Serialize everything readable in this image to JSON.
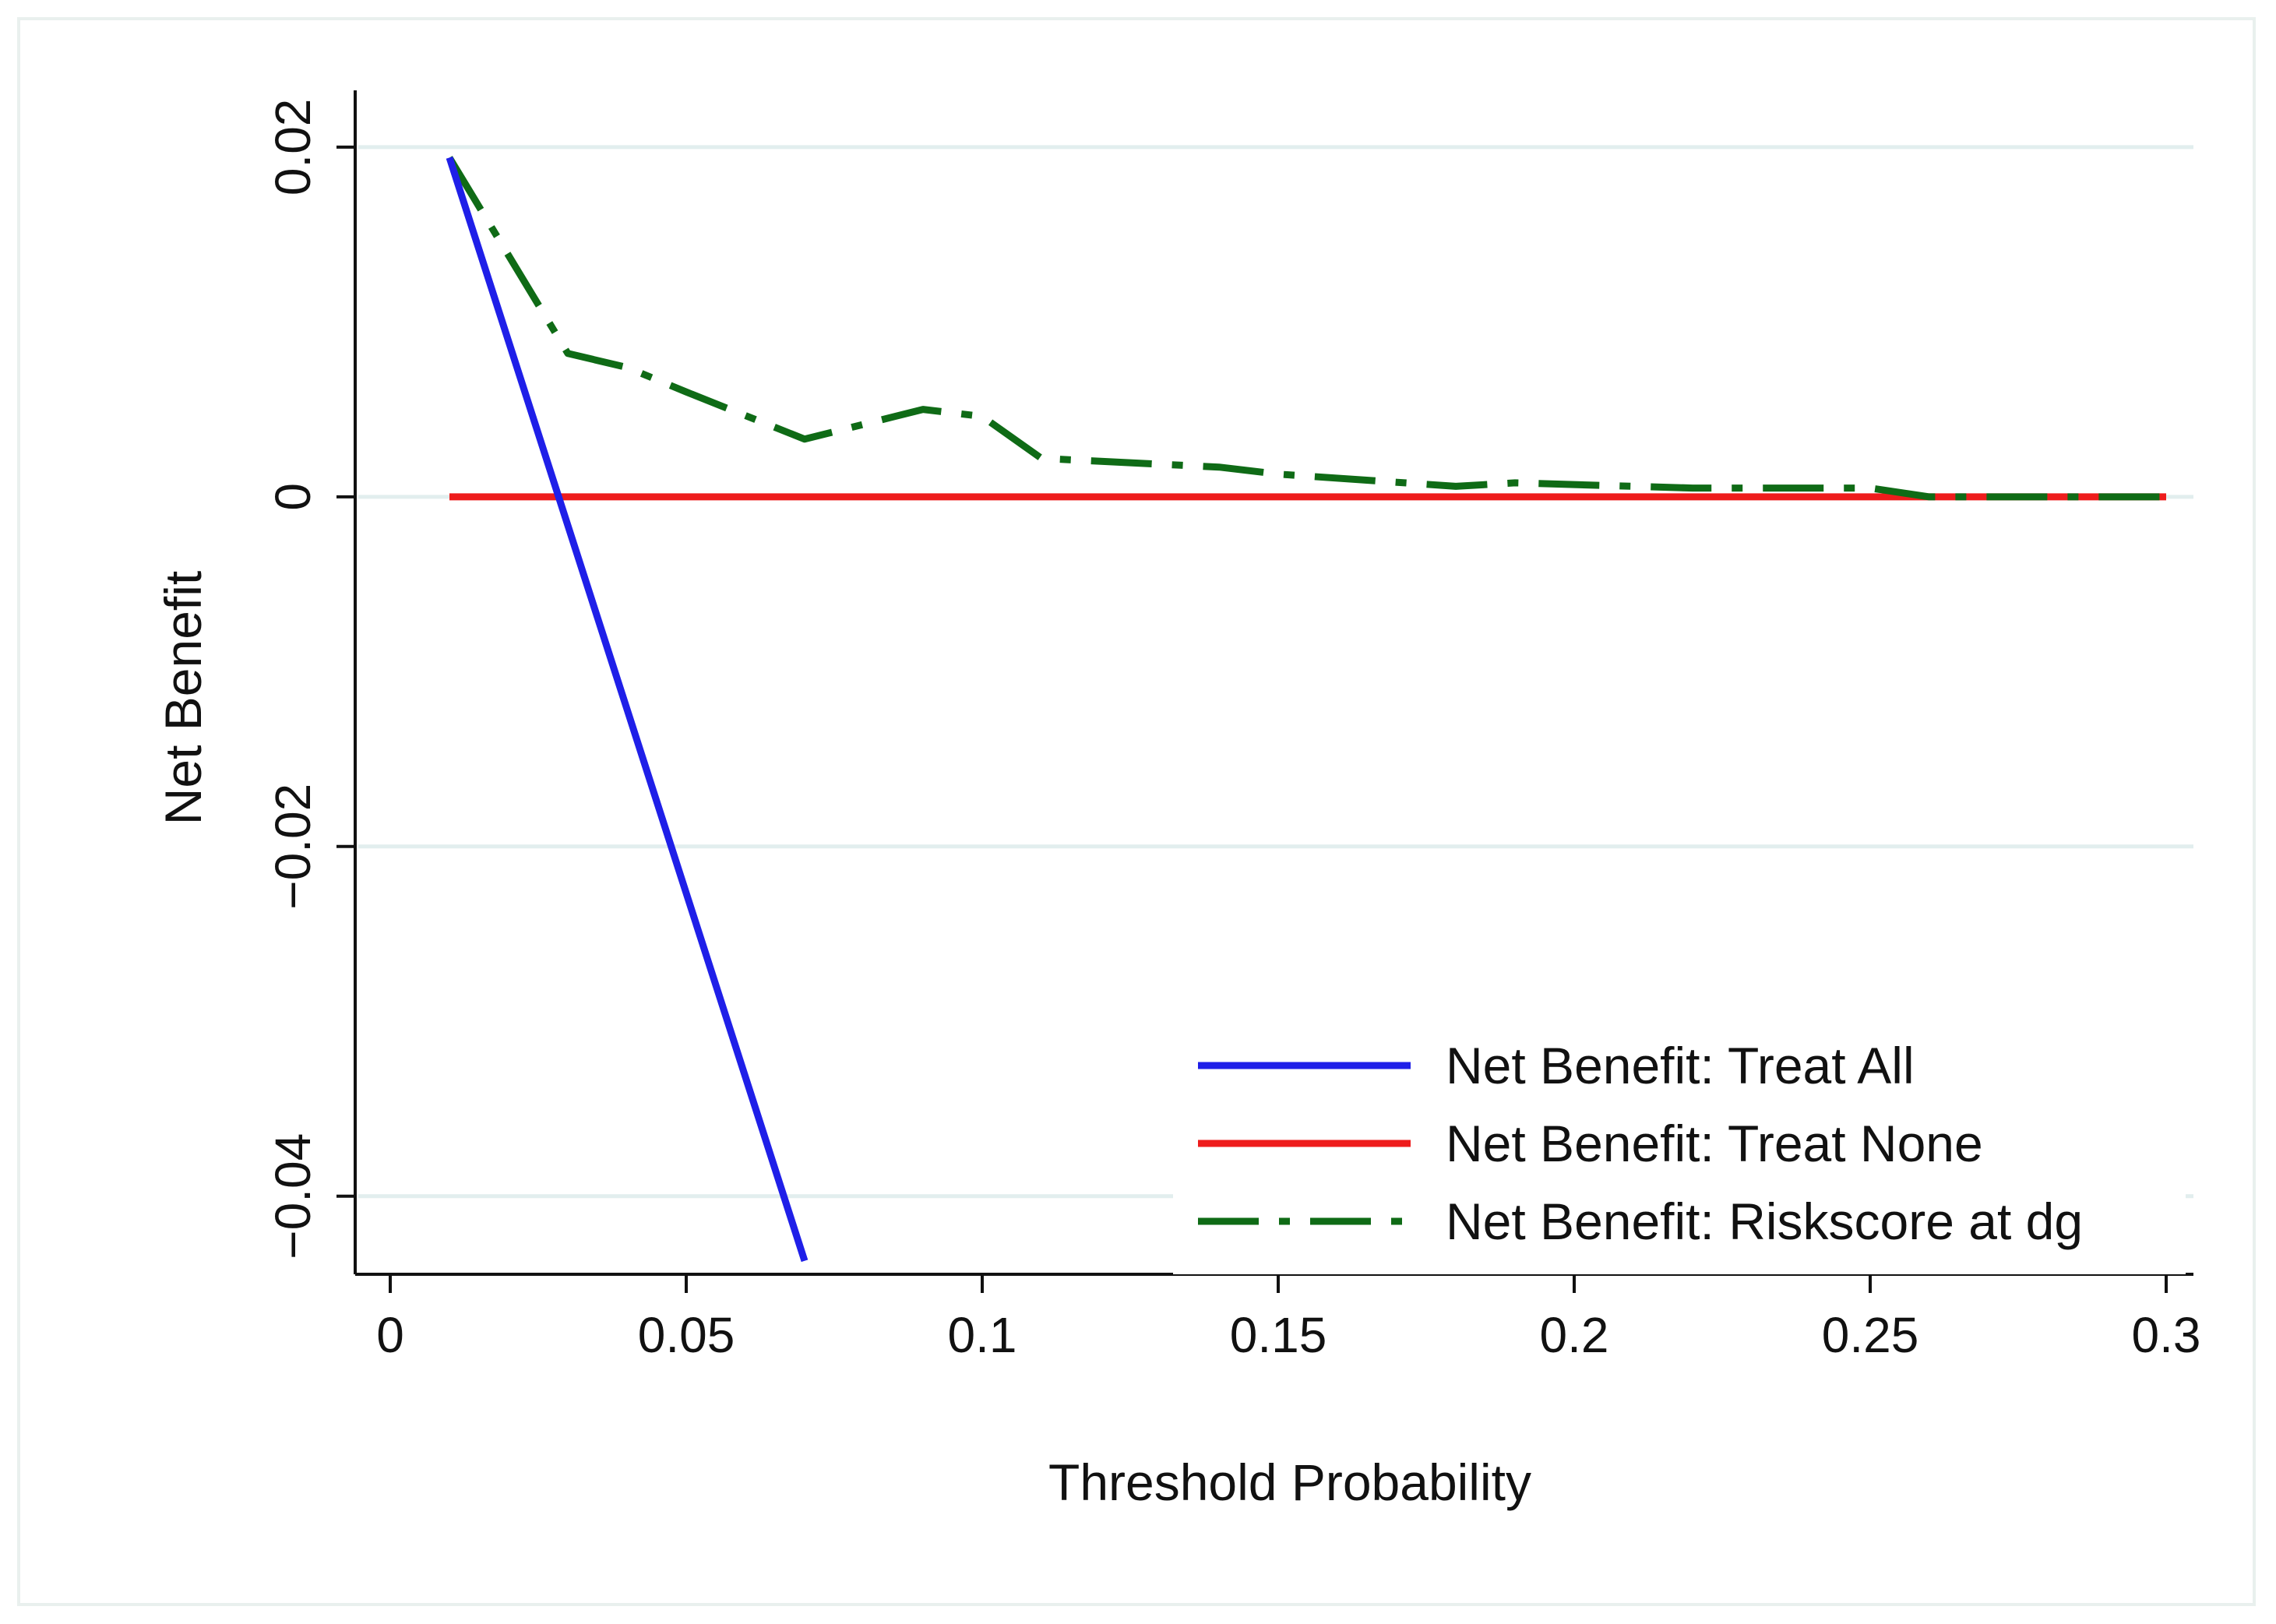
{
  "chart_data": {
    "type": "line",
    "title": "",
    "xlabel": "Threshold Probability",
    "ylabel": "Net Benefit",
    "xlim": [
      0,
      0.3
    ],
    "ylim": [
      -0.045,
      0.022
    ],
    "grid": true,
    "x_ticks": [
      0,
      0.05,
      0.1,
      0.15,
      0.2,
      0.25,
      0.3
    ],
    "x_tick_labels": [
      "0",
      "0.05",
      "0.1",
      "0.15",
      "0.2",
      "0.25",
      "0.3"
    ],
    "y_ticks": [
      0.02,
      0,
      -0.02,
      -0.04
    ],
    "y_tick_labels": [
      "0.02",
      "0",
      "−0.02",
      "−0.04"
    ],
    "legend_position": "bottom-right",
    "series": [
      {
        "name": "Net Benefit: Treat All",
        "color": "#1f1fe8",
        "style": "solid",
        "x": [
          0.01,
          0.07
        ],
        "y": [
          0.0194,
          -0.0437
        ]
      },
      {
        "name": "Net Benefit: Treat None",
        "color": "#ee1c1c",
        "style": "solid",
        "x": [
          0.01,
          0.3
        ],
        "y": [
          0,
          0
        ]
      },
      {
        "name": "Net Benefit: Riskscore at dg",
        "color": "#0f6b16",
        "style": "dash-dot",
        "x": [
          0.01,
          0.03,
          0.04,
          0.05,
          0.07,
          0.09,
          0.1,
          0.11,
          0.14,
          0.15,
          0.18,
          0.19,
          0.22,
          0.25,
          0.26,
          0.3
        ],
        "y": [
          0.0194,
          0.0082,
          0.0074,
          0.006,
          0.0033,
          0.005,
          0.0046,
          0.0022,
          0.0017,
          0.0013,
          0.0006,
          0.0008,
          0.0005,
          0.0005,
          0.0,
          0.0
        ]
      }
    ]
  }
}
